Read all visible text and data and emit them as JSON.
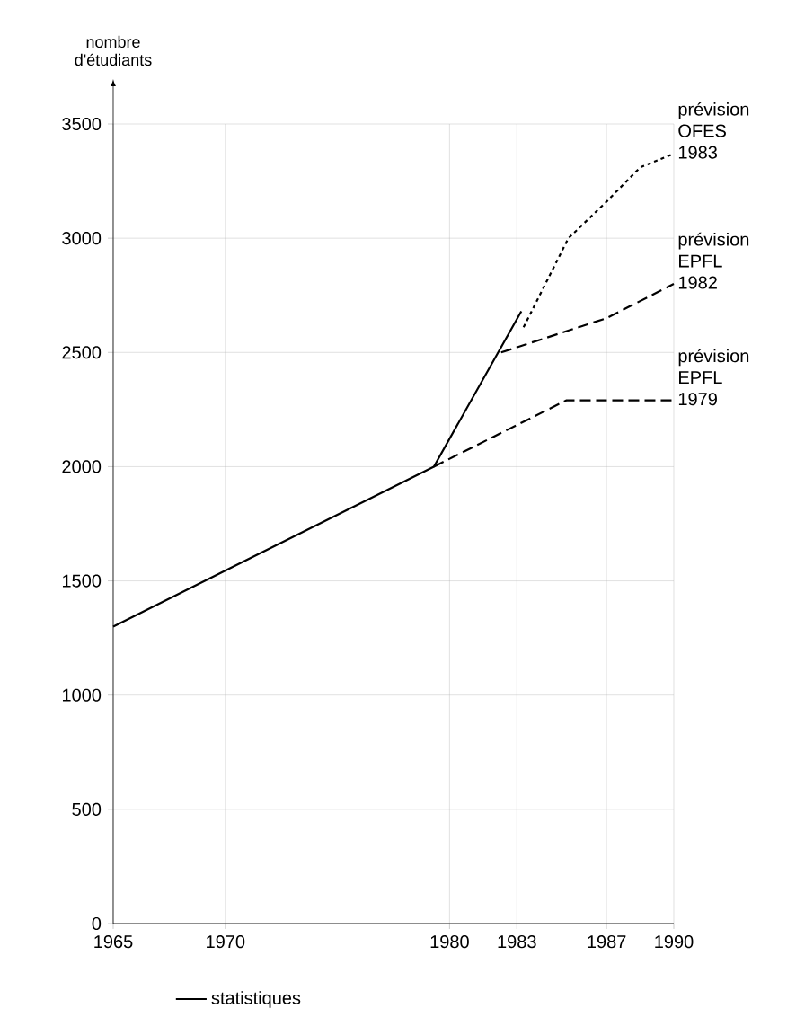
{
  "chart_data": {
    "type": "line",
    "ylabel": "nombre d'étudiants",
    "xlim": [
      1965,
      1990
    ],
    "xticks": [
      1965,
      1970,
      1980,
      1983,
      1987,
      1990
    ],
    "ylim": [
      0,
      3500
    ],
    "yticks": [
      0,
      500,
      1000,
      1500,
      2000,
      2500,
      3000,
      3500
    ],
    "grid": true,
    "legend": "bottom",
    "line_style": "solid",
    "marker": "none",
    "series": [
      {
        "name": "statistiques",
        "color": "#000000",
        "line_style": "solid",
        "x": [
          1965,
          1979.3,
          1983.2
        ],
        "values": [
          1300,
          2000,
          2680
        ]
      },
      {
        "name": "prévision OFES 1983",
        "color": "#000000",
        "line_style": "dotted",
        "x": [
          1983.3,
          1985.3,
          1987,
          1988.5,
          1990
        ],
        "values": [
          2610,
          3000,
          3160,
          3310,
          3370
        ]
      },
      {
        "name": "prévision EPFL 1982",
        "color": "#000000",
        "line_style": "dashed",
        "x": [
          1982.3,
          1987,
          1990
        ],
        "values": [
          2500,
          2650,
          2800
        ]
      },
      {
        "name": "prévision EPFL 1979",
        "color": "#000000",
        "line_style": "dashed",
        "x": [
          1979.3,
          1985.2,
          1990
        ],
        "values": [
          2000,
          2290,
          2290
        ]
      }
    ]
  }
}
